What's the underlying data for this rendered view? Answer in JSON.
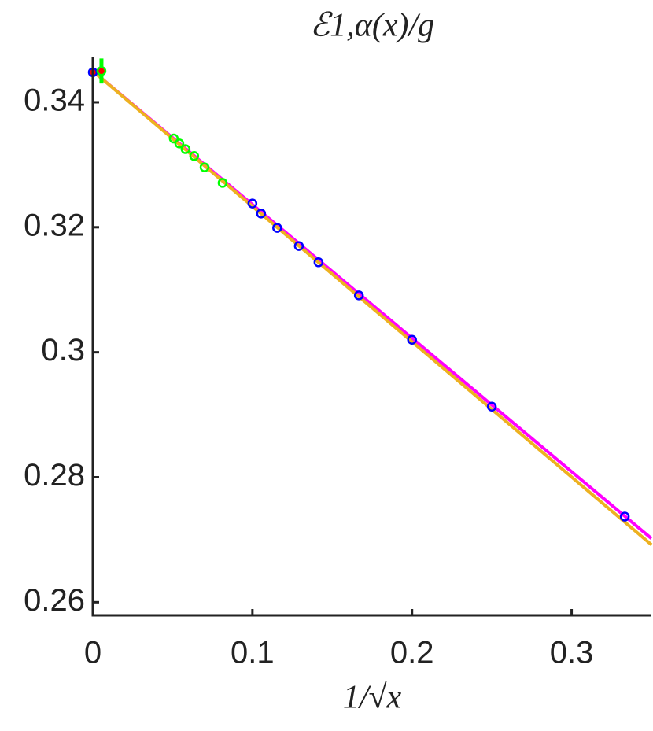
{
  "chart_data": {
    "type": "scatter",
    "title": "ℰ1,α(x)/g",
    "x_label": "1/√x",
    "xlim": [
      0,
      0.35
    ],
    "ylim": [
      0.2579,
      0.3473
    ],
    "xticks": [
      0,
      0.1,
      0.2,
      0.3
    ],
    "yticks": [
      0.26,
      0.28,
      0.3,
      0.32,
      0.34
    ],
    "series": [
      {
        "style": "line",
        "color": "#ff00ff",
        "x": [
          0,
          0.35
        ],
        "values": [
          0.345,
          0.2702
        ]
      },
      {
        "style": "line",
        "color": "#edb120",
        "x": [
          0,
          0.35
        ],
        "values": [
          0.345,
          0.2692
        ]
      },
      {
        "style": "circle",
        "color": "#0000ff",
        "x": [
          0.1,
          0.1054,
          0.1155,
          0.1291,
          0.1414,
          0.1667,
          0.2,
          0.25,
          0.3333
        ],
        "values": [
          0.3238,
          0.3222,
          0.3199,
          0.317,
          0.3144,
          0.3091,
          0.302,
          0.2913,
          0.2737
        ]
      },
      {
        "style": "circle",
        "color": "#00ff00",
        "x": [
          0.0507,
          0.0542,
          0.0581,
          0.0635,
          0.07,
          0.0813
        ],
        "values": [
          0.3342,
          0.3334,
          0.3325,
          0.3314,
          0.3296,
          0.3271
        ]
      },
      {
        "style": "dot",
        "color": "#0000ff",
        "fill": "#ff0000",
        "x": [
          0
        ],
        "values": [
          0.3448
        ]
      },
      {
        "style": "dot",
        "color": "#00ff00",
        "fill": "#ff0000",
        "x": [
          0.0054
        ],
        "values": [
          0.345
        ],
        "errors": [
          0.002
        ]
      }
    ]
  }
}
